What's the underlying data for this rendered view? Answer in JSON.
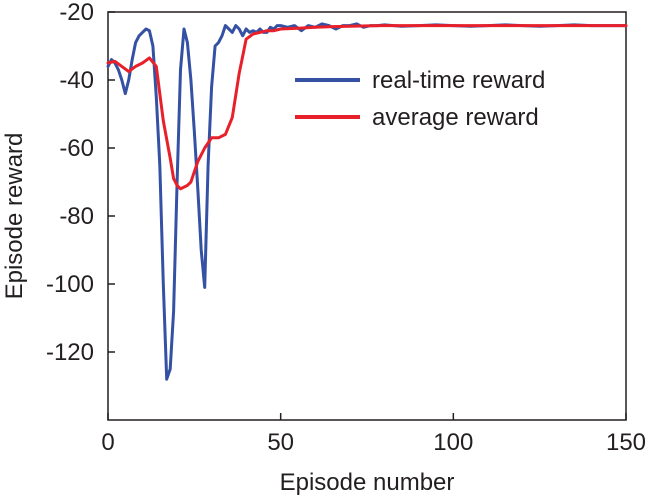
{
  "chart_data": {
    "type": "line",
    "title": "",
    "xlabel": "Episode number",
    "ylabel": "Episode reward",
    "xlim": [
      0,
      150
    ],
    "ylim": [
      -140,
      -20
    ],
    "xticks": [
      0,
      50,
      100,
      150
    ],
    "xtick_labels": [
      "0",
      "50",
      "100",
      "150"
    ],
    "yticks": [
      -20,
      -40,
      -60,
      -80,
      -100,
      -120
    ],
    "ytick_labels": [
      "-20",
      "-40",
      "-60",
      "-80",
      "-100",
      "-120"
    ],
    "grid": false,
    "legend_position": "top-right",
    "series": [
      {
        "name": "real-time reward",
        "color": "#3451a3",
        "x": [
          0,
          1,
          2,
          3,
          4,
          5,
          6,
          7,
          8,
          9,
          10,
          11,
          12,
          13,
          14,
          15,
          16,
          17,
          18,
          19,
          20,
          21,
          22,
          23,
          24,
          25,
          26,
          27,
          28,
          29,
          30,
          31,
          32,
          33,
          34,
          35,
          36,
          37,
          38,
          39,
          40,
          41,
          42,
          43,
          44,
          45,
          46,
          47,
          48,
          49,
          50,
          52,
          54,
          56,
          58,
          60,
          62,
          64,
          66,
          68,
          70,
          72,
          74,
          76,
          78,
          80,
          85,
          90,
          95,
          100,
          105,
          110,
          115,
          120,
          125,
          130,
          135,
          140,
          145,
          150
        ],
        "y": [
          -36,
          -34,
          -35,
          -37,
          -40,
          -44,
          -40,
          -34,
          -29,
          -27,
          -26,
          -25,
          -25.5,
          -30,
          -45,
          -65,
          -100,
          -128,
          -125,
          -108,
          -70,
          -37,
          -25,
          -29,
          -40,
          -55,
          -72,
          -90,
          -101,
          -65,
          -42,
          -30,
          -29,
          -27,
          -24,
          -25,
          -26,
          -24,
          -25,
          -27,
          -25,
          -26,
          -25.5,
          -26,
          -25,
          -26,
          -26,
          -24.5,
          -25,
          -24,
          -24,
          -24.5,
          -24,
          -25.5,
          -24,
          -24.5,
          -23.5,
          -24,
          -25,
          -24,
          -24,
          -23.5,
          -24.5,
          -24,
          -24,
          -23.8,
          -24.2,
          -24,
          -23.8,
          -24,
          -24.2,
          -24,
          -23.8,
          -24,
          -24.2,
          -24,
          -23.8,
          -24,
          -24,
          -24
        ]
      },
      {
        "name": "average reward",
        "color": "#e8202a",
        "x": [
          0,
          2,
          4,
          6,
          8,
          10,
          12,
          14,
          16,
          18,
          19,
          20,
          21,
          22,
          23,
          24,
          25,
          26,
          28,
          30,
          32,
          34,
          36,
          38,
          39,
          40,
          42,
          44,
          46,
          48,
          50,
          55,
          60,
          65,
          70,
          75,
          80,
          90,
          100,
          110,
          120,
          130,
          140,
          150
        ],
        "y": [
          -35,
          -34.5,
          -36,
          -37.5,
          -36,
          -35,
          -33.5,
          -36,
          -52,
          -63,
          -69,
          -71,
          -72,
          -71.5,
          -71,
          -70,
          -67,
          -64,
          -60,
          -57,
          -57,
          -56,
          -51,
          -38,
          -33,
          -28,
          -26.5,
          -26,
          -25.5,
          -25.5,
          -25,
          -24.8,
          -24.5,
          -24.3,
          -24.2,
          -24.1,
          -24,
          -24,
          -24,
          -24,
          -24,
          -24,
          -24,
          -24
        ]
      }
    ]
  }
}
